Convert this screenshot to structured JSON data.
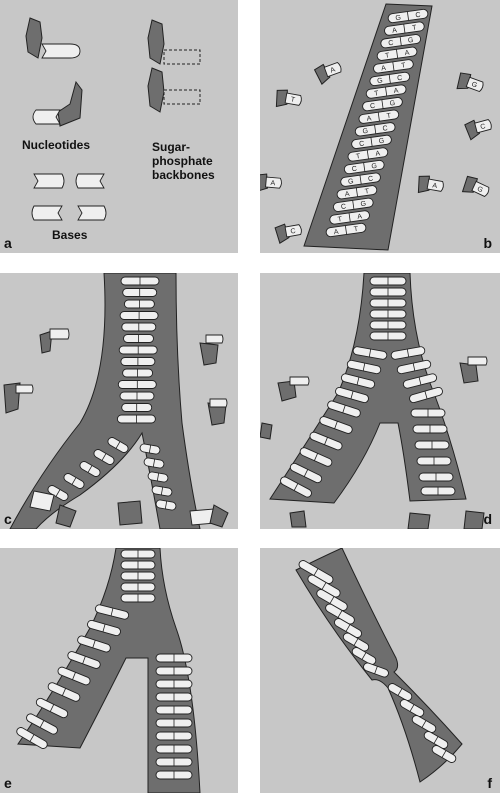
{
  "panels": {
    "a": {
      "letter": "a",
      "nucleotides_label": "Nucleotides",
      "backbones_label": "Sugar-\nphosphate\nbackbones",
      "bases_label": "Bases"
    },
    "b": {
      "letter": "b",
      "pairs": [
        "G-C",
        "A-T",
        "C-G",
        "T-A",
        "A-T",
        "G-C",
        "T-A",
        "C-G",
        "A-T",
        "G-C",
        "C-G",
        "T-A",
        "C-G"
      ],
      "free_nucleotides": [
        "A",
        "T",
        "G",
        "C",
        "A",
        "G",
        "A",
        "C"
      ]
    },
    "c": {
      "letter": "c"
    },
    "d": {
      "letter": "d"
    },
    "e": {
      "letter": "e"
    },
    "f": {
      "letter": "f"
    }
  },
  "colors": {
    "panel_bg": "#c7c7c7",
    "backbone": "#6e6e6e",
    "base": "#efefef",
    "outline": "#222222"
  }
}
